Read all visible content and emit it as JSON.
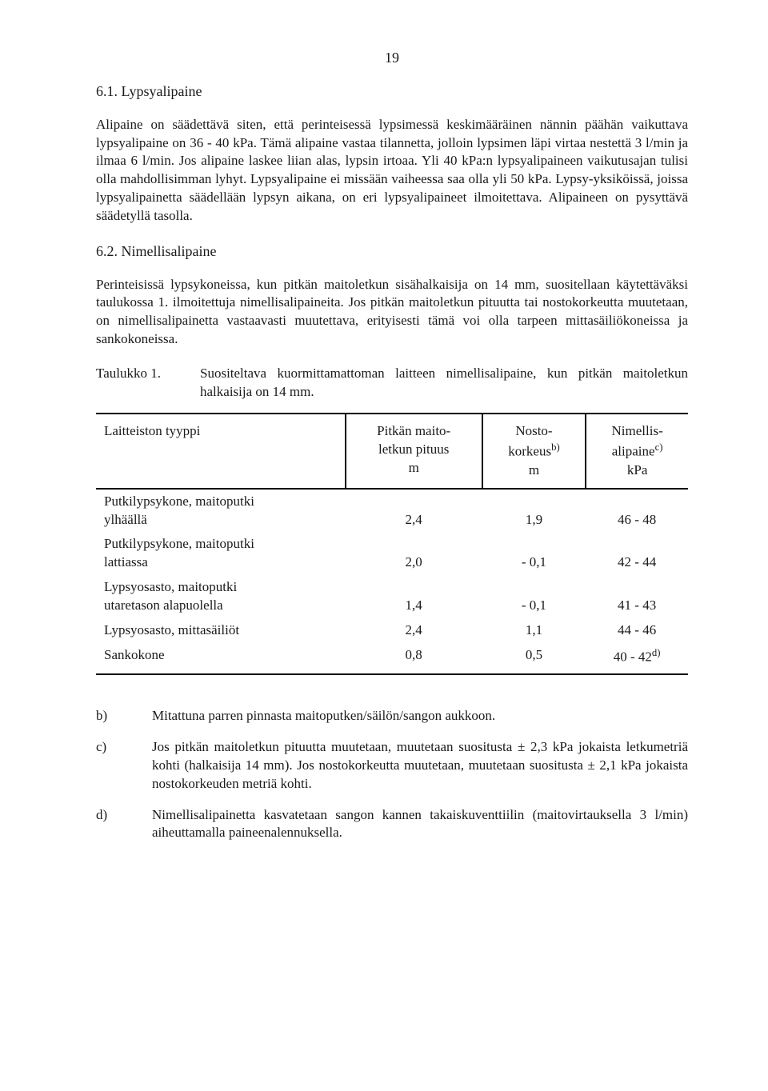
{
  "page_number": "19",
  "section_6_1": {
    "title": "6.1. Lypsyalipaine",
    "para": "Alipaine on säädettävä siten, että perinteisessä lypsimessä keskimääräinen nännin päähän vaikuttava lypsyalipaine on 36 - 40 kPa. Tämä alipaine vastaa tilannetta, jolloin lypsimen läpi virtaa nestettä 3 l/min ja ilmaa 6 l/min. Jos alipaine laskee liian alas, lypsin irtoaa. Yli 40 kPa:n lypsyalipaineen vaikutusajan tulisi olla mahdollisimman lyhyt. Lypsyalipaine ei missään vaiheessa saa olla yli 50 kPa. Lypsy-yksiköissä, joissa lypsyalipainetta säädellään lypsyn aikana, on eri lypsyalipaineet ilmoitettava. Alipaineen on pysyttävä säädetyllä tasolla."
  },
  "section_6_2": {
    "title": "6.2. Nimellisalipaine",
    "para": "Perinteisissä lypsykoneissa, kun pitkän maitoletkun sisähalkaisija on 14 mm, suositellaan käytettäväksi taulukossa 1. ilmoitettuja nimellisalipaineita. Jos pitkän maitoletkun pituutta tai nostokorkeutta muutetaan, on nimellisalipainetta vastaavasti muutettava, erityisesti tämä voi olla tarpeen mittasäiliökoneissa ja sankokoneissa."
  },
  "table": {
    "caption_label": "Taulukko 1.",
    "caption_text": "Suositeltava kuormittamattoman laitteen nimellisalipaine, kun pitkän maitoletkun halkaisija on 14 mm.",
    "headers": {
      "c1": "Laitteiston tyyppi",
      "c2_l1": "Pitkän maito-",
      "c2_l2": "letkun pituus",
      "c2_l3": "m",
      "c3_l1": "Nosto-",
      "c3_l2": "korkeus",
      "c3_sup": "b)",
      "c3_l3": "m",
      "c4_l1": "Nimellis-",
      "c4_l2": "alipaine",
      "c4_sup": "c)",
      "c4_l3": "kPa"
    },
    "rows": [
      {
        "label_l1": "Putkilypsykone, maitoputki",
        "label_l2": "ylhäällä",
        "c2": "2,4",
        "c3": "1,9",
        "c4": "46 - 48"
      },
      {
        "label_l1": "Putkilypsykone, maitoputki",
        "label_l2": "lattiassa",
        "c2": "2,0",
        "c3": "- 0,1",
        "c4": "42 - 44"
      },
      {
        "label_l1": "Lypsyosasto, maitoputki",
        "label_l2": "utaretason alapuolella",
        "c2": "1,4",
        "c3": "- 0,1",
        "c4": "41 - 43"
      },
      {
        "label_l1": "Lypsyosasto, mittasäiliöt",
        "label_l2": "",
        "c2": "2,4",
        "c3": "1,1",
        "c4": "44 - 46"
      },
      {
        "label_l1": "Sankokone",
        "label_l2": "",
        "c2": "0,8",
        "c3": "0,5",
        "c4": "40 - 42",
        "c4_sup": "d)"
      }
    ]
  },
  "footnotes": {
    "b": {
      "mark": "b)",
      "text": "Mitattuna parren pinnasta maitoputken/säilön/sangon aukkoon."
    },
    "c": {
      "mark": "c)",
      "text": "Jos pitkän maitoletkun pituutta muutetaan, muutetaan suositusta ± 2,3 kPa jokaista letkumetriä kohti (halkaisija 14 mm). Jos nostokorkeutta muutetaan, muutetaan suositusta ± 2,1 kPa jokaista nostokorkeuden metriä kohti."
    },
    "d": {
      "mark": "d)",
      "text": "Nimellisalipainetta kasvatetaan sangon kannen takaiskuventtiilin (maitovirtauksella 3 l/min) aiheuttamalla paineenalennuksella."
    }
  }
}
